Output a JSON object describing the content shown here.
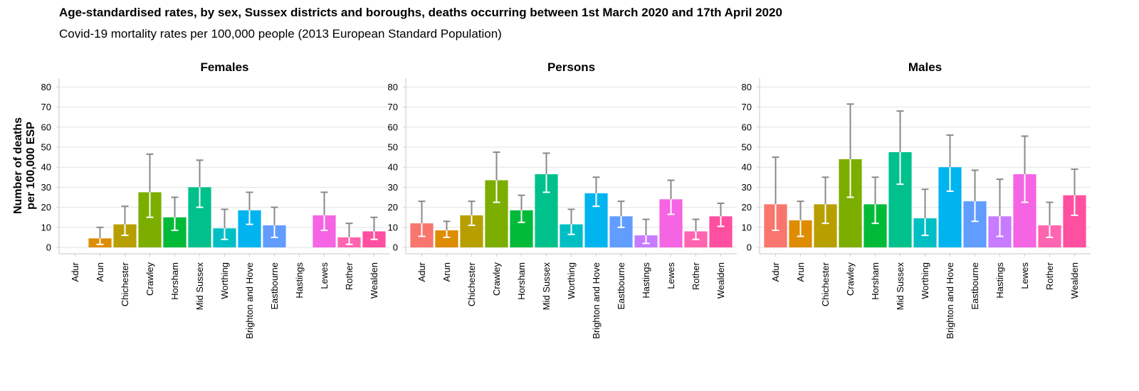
{
  "header": {
    "title": "Age-standardised rates, by sex, Sussex districts and boroughs, deaths occurring between 1st March 2020 and 17th April 2020",
    "subtitle": "Covid-19 mortality rates per 100,000 people (2013 European Standard Population)"
  },
  "chart_data": {
    "type": "bar",
    "title": "Age-standardised rates, by sex, Sussex districts and boroughs, deaths occurring between 1st March 2020 and 17th April 2020",
    "subtitle": "Covid-19 mortality rates per 100,000 people (2013 European Standard Population)",
    "ylabel_lines": [
      "Number of deaths",
      "per 100,000 ESP"
    ],
    "ylim": [
      0,
      80
    ],
    "yticks": [
      0,
      10,
      20,
      30,
      40,
      50,
      60,
      70,
      80
    ],
    "grid": true,
    "categories": [
      "Adur",
      "Arun",
      "Chichester",
      "Crawley",
      "Horsham",
      "Mid Sussex",
      "Worthing",
      "Brighton and Hove",
      "Eastbourne",
      "Hastings",
      "Lewes",
      "Rother",
      "Wealden"
    ],
    "colors": [
      "#F8766D",
      "#DE8C00",
      "#B79F00",
      "#7CAE00",
      "#00BA38",
      "#00C08B",
      "#00BFC4",
      "#00B4F0",
      "#619CFF",
      "#C77CFF",
      "#F564E3",
      "#FF64B0",
      "#FF4FA0"
    ],
    "panels": [
      {
        "name": "Females",
        "values": [
          null,
          4.5,
          11.5,
          27.5,
          15,
          30,
          9.5,
          18.5,
          11,
          null,
          16,
          5,
          8
        ],
        "lower": [
          null,
          1.5,
          6,
          15,
          8.5,
          20,
          4,
          11.5,
          5,
          null,
          8.5,
          1.5,
          4
        ],
        "upper": [
          null,
          10,
          20.5,
          46.5,
          25,
          43.5,
          19,
          27.5,
          20,
          null,
          27.5,
          12,
          15
        ]
      },
      {
        "name": "Persons",
        "values": [
          12,
          8.5,
          16,
          33.5,
          18.5,
          36.5,
          11.5,
          27,
          15.5,
          6,
          24,
          8,
          15.5
        ],
        "lower": [
          5.5,
          5,
          11,
          22.5,
          12.5,
          27.5,
          6.5,
          20.5,
          10,
          2,
          16.5,
          4,
          10.5
        ],
        "upper": [
          23,
          13,
          23,
          47.5,
          26,
          47,
          19,
          35,
          23,
          14,
          33.5,
          14,
          22
        ]
      },
      {
        "name": "Males",
        "values": [
          21.5,
          13.5,
          21.5,
          44,
          21.5,
          47.5,
          14.5,
          40,
          23,
          15.5,
          36.5,
          11,
          26
        ],
        "lower": [
          8.5,
          5.5,
          12,
          25,
          12,
          31.5,
          6,
          28,
          13,
          5.5,
          22.5,
          5,
          16
        ],
        "upper": [
          45,
          23,
          35,
          71.5,
          35,
          68,
          29,
          56,
          38.5,
          34,
          55.5,
          22.5,
          39
        ]
      }
    ]
  }
}
